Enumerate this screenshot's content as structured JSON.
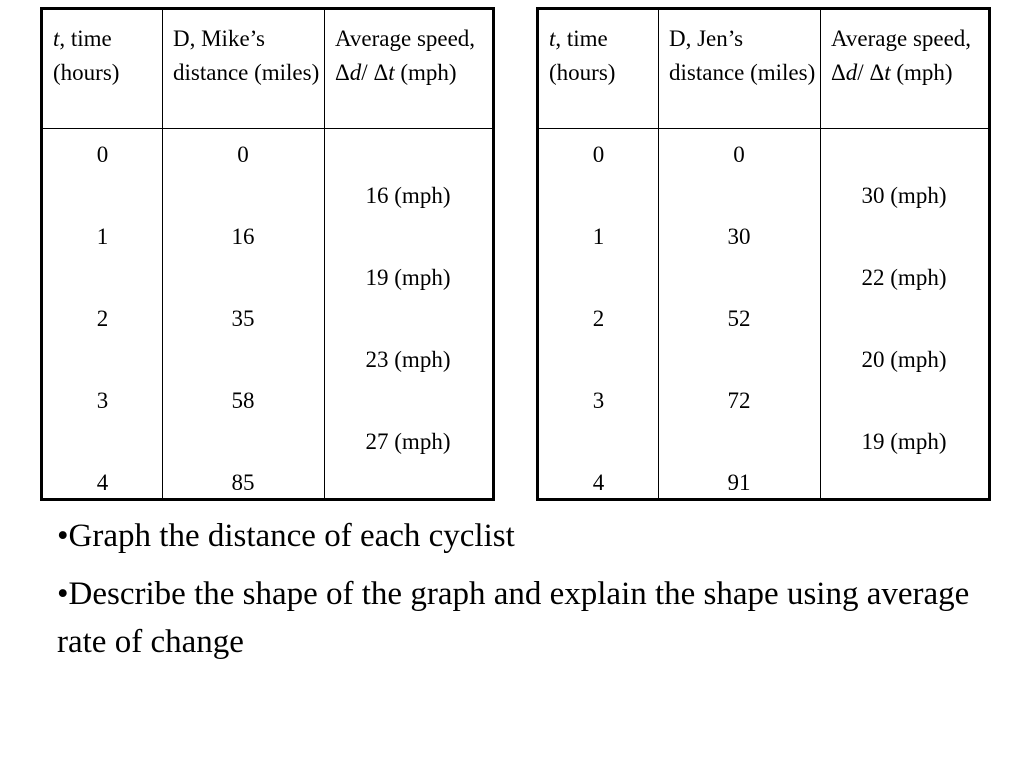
{
  "tables": [
    {
      "headers": {
        "time_var": "t",
        "time_rest": ", time (hours)",
        "distance": "D, Mike’s distance (miles)",
        "speed_title": "Average speed,",
        "delta_d_sym": "Δ",
        "delta_d_var": "d",
        "slash": "/ ",
        "delta_t_sym": "Δ",
        "delta_t_var": "t",
        "speed_unit": " (mph)"
      },
      "times": [
        "0",
        "1",
        "2",
        "3",
        "4"
      ],
      "distances": [
        "0",
        "16",
        "35",
        "58",
        "85"
      ],
      "speeds": [
        "16 (mph)",
        "19 (mph)",
        "23 (mph)",
        "27 (mph)"
      ]
    },
    {
      "headers": {
        "time_var": "t",
        "time_rest": ", time (hours)",
        "distance": "D, Jen’s distance (miles)",
        "speed_title": "Average speed,",
        "delta_d_sym": "Δ",
        "delta_d_var": "d",
        "slash": "/ ",
        "delta_t_sym": "Δ",
        "delta_t_var": "t",
        "speed_unit": " (mph)"
      },
      "times": [
        "0",
        "1",
        "2",
        "3",
        "4"
      ],
      "distances": [
        "0",
        "30",
        "52",
        "72",
        "91"
      ],
      "speeds": [
        "30 (mph)",
        "22 (mph)",
        "20 (mph)",
        "19 (mph)"
      ]
    }
  ],
  "bullets": [
    "•Graph the distance of each cyclist",
    "•Describe the shape of the graph and explain the shape using average rate of change"
  ]
}
